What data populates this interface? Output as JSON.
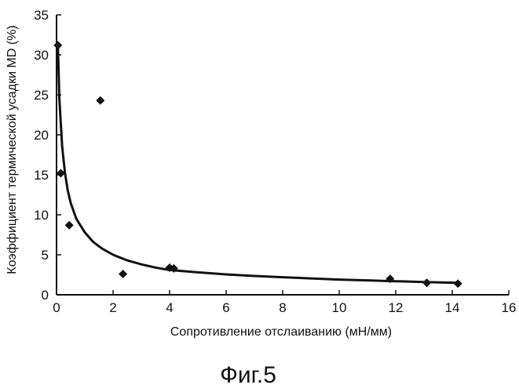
{
  "chart_data": {
    "type": "scatter",
    "title": "",
    "xlabel": "Сопротивление отслаиванию (мН/мм)",
    "ylabel": "Коэффициент термической усадки MD (%)",
    "xlim": [
      0,
      16
    ],
    "ylim": [
      0,
      35
    ],
    "xticks": [
      0,
      2,
      4,
      6,
      8,
      10,
      12,
      14,
      16
    ],
    "yticks": [
      0,
      5,
      10,
      15,
      20,
      25,
      30,
      35
    ],
    "grid": false,
    "legend": "none",
    "series": [
      {
        "marker": "diamond",
        "color": "#111111",
        "points": [
          [
            0.05,
            31.2
          ],
          [
            0.15,
            15.2
          ],
          [
            0.45,
            8.7
          ],
          [
            1.55,
            24.3
          ],
          [
            2.35,
            2.6
          ],
          [
            4.0,
            3.4
          ],
          [
            4.15,
            3.3
          ],
          [
            11.8,
            2.0
          ],
          [
            13.1,
            1.5
          ],
          [
            14.2,
            1.4
          ]
        ]
      }
    ],
    "trendline": {
      "type": "power-fit",
      "color": "#111111",
      "points": [
        [
          0.05,
          31.0
        ],
        [
          0.1,
          24.5
        ],
        [
          0.2,
          18.5
        ],
        [
          0.3,
          15.2
        ],
        [
          0.4,
          13.0
        ],
        [
          0.5,
          11.5
        ],
        [
          0.7,
          9.5
        ],
        [
          1.0,
          7.8
        ],
        [
          1.3,
          6.6
        ],
        [
          1.6,
          5.8
        ],
        [
          2.0,
          5.0
        ],
        [
          2.5,
          4.3
        ],
        [
          3.0,
          3.8
        ],
        [
          3.5,
          3.4
        ],
        [
          4.0,
          3.1
        ],
        [
          5.0,
          2.8
        ],
        [
          6.0,
          2.55
        ],
        [
          7.0,
          2.35
        ],
        [
          8.0,
          2.2
        ],
        [
          9.0,
          2.05
        ],
        [
          10.0,
          1.9
        ],
        [
          11.0,
          1.8
        ],
        [
          12.0,
          1.7
        ],
        [
          13.0,
          1.6
        ],
        [
          14.2,
          1.5
        ]
      ]
    }
  },
  "caption": "Фиг.5"
}
